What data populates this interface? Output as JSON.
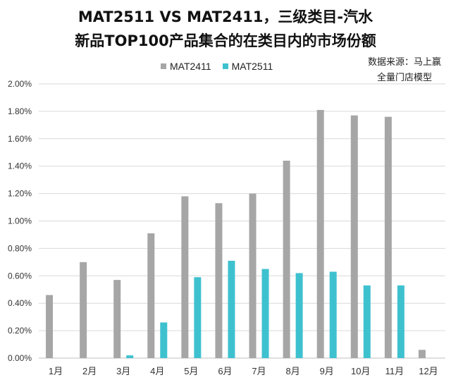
{
  "title_line1": "MAT2511 VS MAT2411，三级类目-汽水",
  "title_line2": "新品TOP100产品集合的在类目内的市场份额",
  "source_line1": "数据来源：马上赢",
  "source_line2": "全量门店模型",
  "colors": {
    "series1": "#a6a6a6",
    "series2": "#3ec1cf",
    "grid": "#d9d9d9",
    "axis": "#bfbfbf",
    "text": "#333333"
  },
  "chart_data": {
    "type": "bar",
    "categories": [
      "1月",
      "2月",
      "3月",
      "4月",
      "5月",
      "6月",
      "7月",
      "8月",
      "9月",
      "10月",
      "11月",
      "12月"
    ],
    "series": [
      {
        "name": "MAT2411",
        "values": [
          0.46,
          0.7,
          0.57,
          0.91,
          1.18,
          1.13,
          1.2,
          1.44,
          1.81,
          1.77,
          1.76,
          0.06
        ]
      },
      {
        "name": "MAT2511",
        "values": [
          null,
          null,
          0.02,
          0.26,
          0.59,
          0.71,
          0.65,
          0.62,
          0.63,
          0.53,
          0.53,
          null
        ]
      }
    ],
    "ylim": [
      0,
      2.0
    ],
    "yticks": [
      "0.00%",
      "0.20%",
      "0.40%",
      "0.60%",
      "0.80%",
      "1.00%",
      "1.20%",
      "1.40%",
      "1.60%",
      "1.80%",
      "2.00%"
    ],
    "grid": true,
    "legend_position": "top"
  }
}
